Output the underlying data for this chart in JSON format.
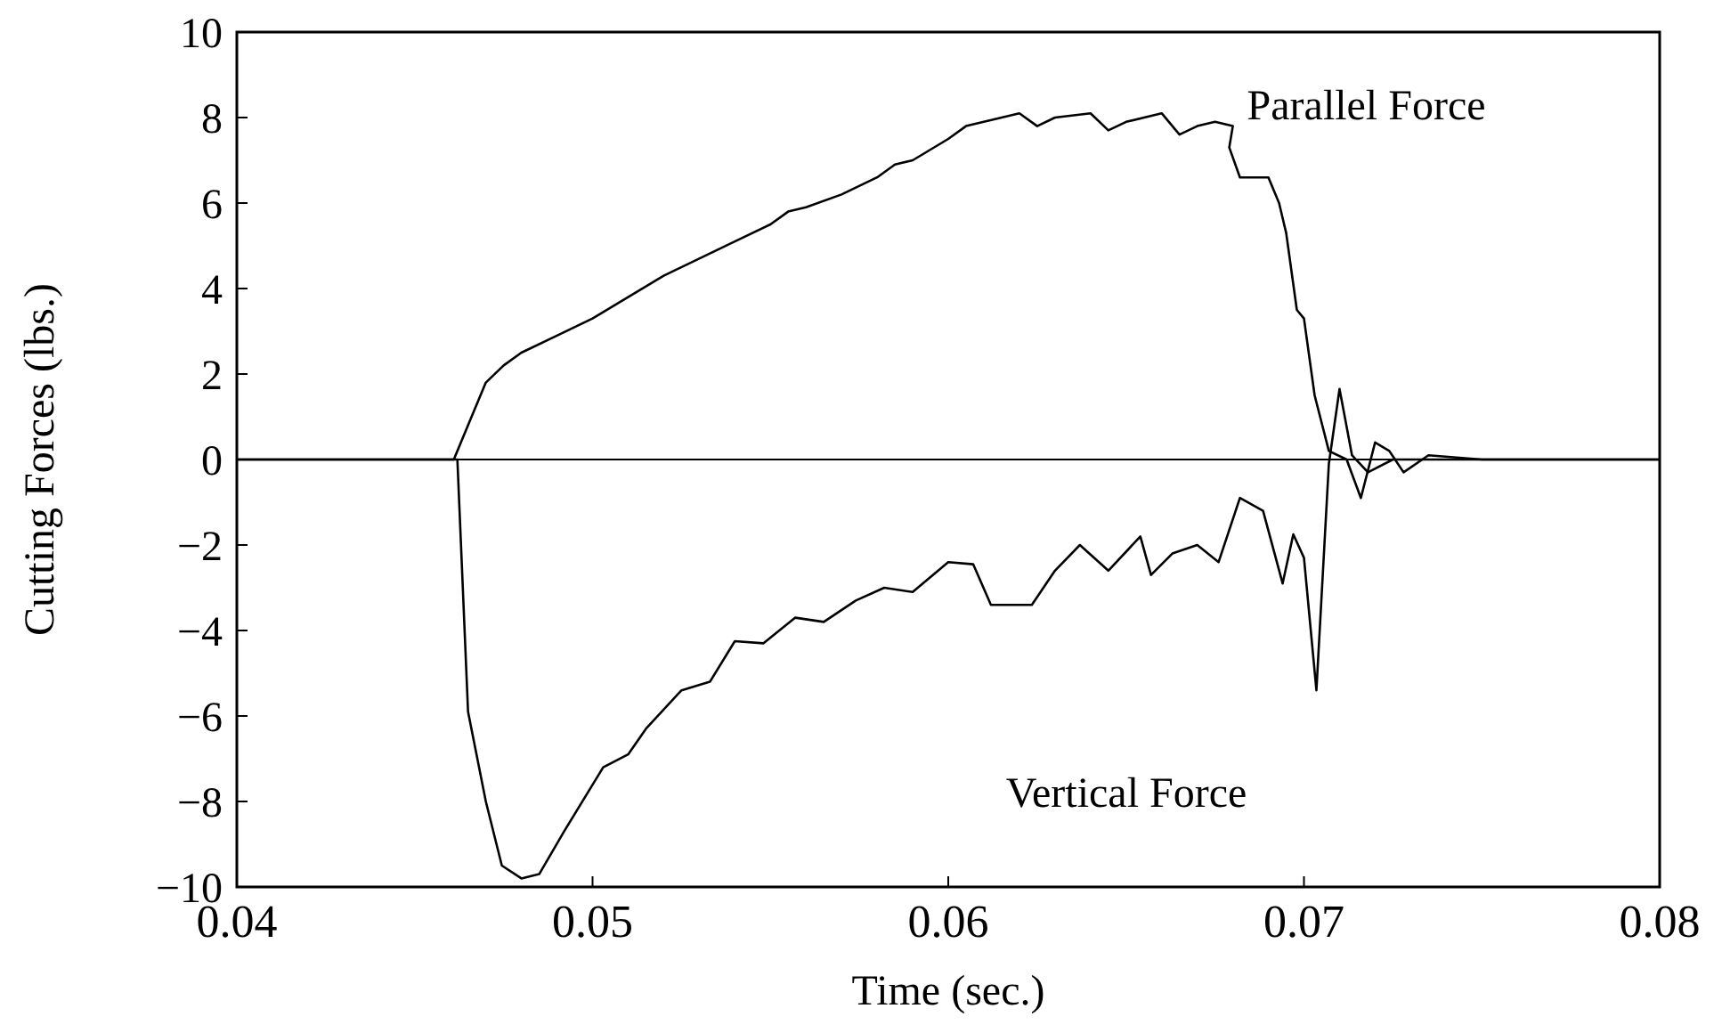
{
  "chart_data": {
    "type": "line",
    "xlabel": "Time (sec.)",
    "ylabel": "Cutting Forces (lbs.)",
    "xlim": [
      0.04,
      0.08
    ],
    "xticks": [
      0.04,
      0.05,
      0.06,
      0.07,
      0.08
    ],
    "ylim": [
      -10,
      10
    ],
    "yticks": [
      -10,
      -8,
      -6,
      -4,
      -2,
      0,
      2,
      4,
      6,
      8,
      10
    ],
    "grid": false,
    "marker": "none",
    "line_style": "solid",
    "ref_lines": [
      {
        "axis": "y",
        "value": 0,
        "color": "#000000"
      }
    ],
    "series": [
      {
        "name": "Parallel Force",
        "color": "#000000",
        "x": [
          0.04,
          0.043,
          0.0461,
          0.0465,
          0.047,
          0.0475,
          0.048,
          0.049,
          0.05,
          0.051,
          0.052,
          0.053,
          0.054,
          0.055,
          0.0555,
          0.056,
          0.057,
          0.058,
          0.0585,
          0.059,
          0.06,
          0.0605,
          0.061,
          0.062,
          0.0625,
          0.063,
          0.064,
          0.0645,
          0.065,
          0.066,
          0.0665,
          0.067,
          0.0675,
          0.068,
          0.0679,
          0.0682,
          0.069,
          0.0693,
          0.0695,
          0.0698,
          0.07,
          0.0703,
          0.0707,
          0.0712,
          0.0716,
          0.072,
          0.0724,
          0.0728,
          0.0735,
          0.075,
          0.08
        ],
        "values": [
          0,
          0,
          0,
          0.8,
          1.8,
          2.2,
          2.5,
          2.9,
          3.3,
          3.8,
          4.3,
          4.7,
          5.1,
          5.5,
          5.8,
          5.9,
          6.2,
          6.6,
          6.9,
          7.0,
          7.5,
          7.8,
          7.9,
          8.1,
          7.8,
          8.0,
          8.1,
          7.7,
          7.9,
          8.1,
          7.6,
          7.8,
          7.9,
          7.8,
          7.3,
          6.6,
          6.6,
          6.0,
          5.3,
          3.5,
          3.3,
          1.5,
          0.2,
          0,
          -0.9,
          0.4,
          0.2,
          -0.3,
          0.1,
          0,
          0
        ]
      },
      {
        "name": "Vertical Force",
        "color": "#000000",
        "x": [
          0.04,
          0.043,
          0.0462,
          0.0465,
          0.047,
          0.04745,
          0.048,
          0.0485,
          0.0492,
          0.0503,
          0.051,
          0.0515,
          0.0525,
          0.0533,
          0.054,
          0.0548,
          0.0557,
          0.0565,
          0.0574,
          0.0582,
          0.059,
          0.06,
          0.0607,
          0.0612,
          0.06235,
          0.063,
          0.0637,
          0.0645,
          0.0654,
          0.0657,
          0.0663,
          0.067,
          0.0676,
          0.0682,
          0.06885,
          0.0694,
          0.0697,
          0.07,
          0.07035,
          0.0707,
          0.071,
          0.07135,
          0.0718,
          0.0725,
          0.08
        ],
        "values": [
          0,
          0,
          0,
          -5.9,
          -8,
          -9.5,
          -9.8,
          -9.7,
          -8.7,
          -7.2,
          -6.9,
          -6.3,
          -5.4,
          -5.2,
          -4.25,
          -4.3,
          -3.7,
          -3.8,
          -3.3,
          -3.0,
          -3.1,
          -2.4,
          -2.45,
          -3.4,
          -3.4,
          -2.6,
          -2.0,
          -2.6,
          -1.8,
          -2.7,
          -2.2,
          -2.0,
          -2.4,
          -0.9,
          -1.2,
          -2.9,
          -1.75,
          -2.3,
          -5.4,
          -0.1,
          1.65,
          0.1,
          -0.3,
          0,
          0
        ]
      }
    ]
  }
}
